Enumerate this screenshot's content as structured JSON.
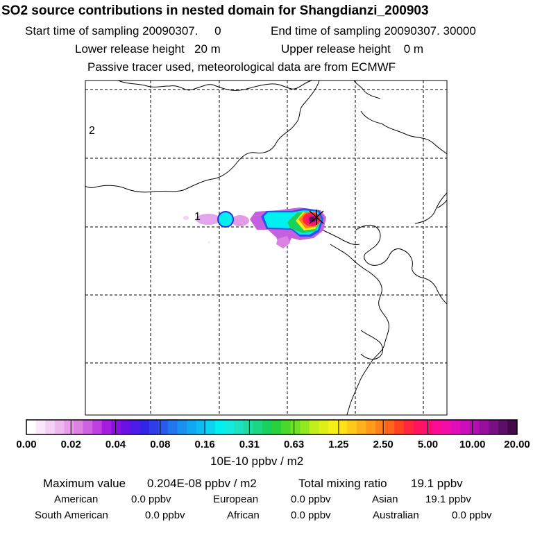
{
  "header": {
    "title": "SO2 source contributions in nested domain for Shangdianzi_200903",
    "start_sampling": "Start time of sampling 20090307.     0",
    "end_sampling": "End time of sampling 20090307. 30000",
    "lower_release": "Lower release height   20 m",
    "upper_release": "Upper release height    0 m",
    "tracer_note": "Passive tracer used, meteorological data are from ECMWF"
  },
  "chart_data": {
    "type": "heatmap",
    "title": "SO2 source contributions in nested domain for Shangdianzi_200903",
    "map_labels": [
      "1",
      "2"
    ],
    "colorbar": {
      "unit": "10E-10 ppbv / m2",
      "tick_labels": [
        "0.00",
        "0.02",
        "0.04",
        "0.08",
        "0.16",
        "0.31",
        "0.63",
        "1.25",
        "2.50",
        "5.00",
        "10.00",
        "20.00"
      ],
      "ticks": [
        0.0,
        0.02,
        0.04,
        0.08,
        0.16,
        0.31,
        0.63,
        1.25,
        2.5,
        5.0,
        10.0,
        20.0
      ],
      "colors": [
        "#ffffff",
        "#fbe8fb",
        "#f5d0f5",
        "#efb8ef",
        "#e79de9",
        "#dd82e3",
        "#cf62e0",
        "#bf3fe0",
        "#a51ddf",
        "#8a10e0",
        "#6a10e4",
        "#4d1ce8",
        "#3325e8",
        "#2d3ee8",
        "#2a5aeb",
        "#2277ee",
        "#1a90f0",
        "#12a7f2",
        "#0dbcf2",
        "#0fd2f0",
        "#00f0f0",
        "#14eadd",
        "#1fe2c3",
        "#20dca4",
        "#1cd684",
        "#18d15e",
        "#2bd13a",
        "#4bd82a",
        "#6fe024",
        "#92e81e",
        "#c2ee1c",
        "#dcef17",
        "#f5f117",
        "#ffe21a",
        "#ffc91c",
        "#ffb21c",
        "#ff9a1c",
        "#ff811c",
        "#ff641d",
        "#ff451f",
        "#ff2740",
        "#ff165c",
        "#ff0e78",
        "#fc0b93",
        "#f20caa",
        "#e10cba",
        "#cc0dbc",
        "#b20eb2",
        "#960f9f",
        "#7a1086",
        "#5c0f66",
        "#440a48"
      ]
    },
    "max_point": {
      "value": 20.4,
      "unit": "10E-10 ppbv / m2"
    },
    "source_value_peak": 20.4
  },
  "stats": {
    "maximum_label": "Maximum value",
    "maximum_value": "0.204E-08 ppbv / m2",
    "total_label": "Total mixing ratio",
    "total_value": "19.1 ppbv",
    "regions": [
      {
        "name": "American",
        "value": "0.0 ppbv"
      },
      {
        "name": "European",
        "value": "0.0 ppbv"
      },
      {
        "name": "Asian",
        "value": "19.1 ppbv"
      },
      {
        "name": "South American",
        "value": "0.0 ppbv"
      },
      {
        "name": "African",
        "value": "0.0 ppbv"
      },
      {
        "name": "Australian",
        "value": "0.0 ppbv"
      }
    ]
  }
}
